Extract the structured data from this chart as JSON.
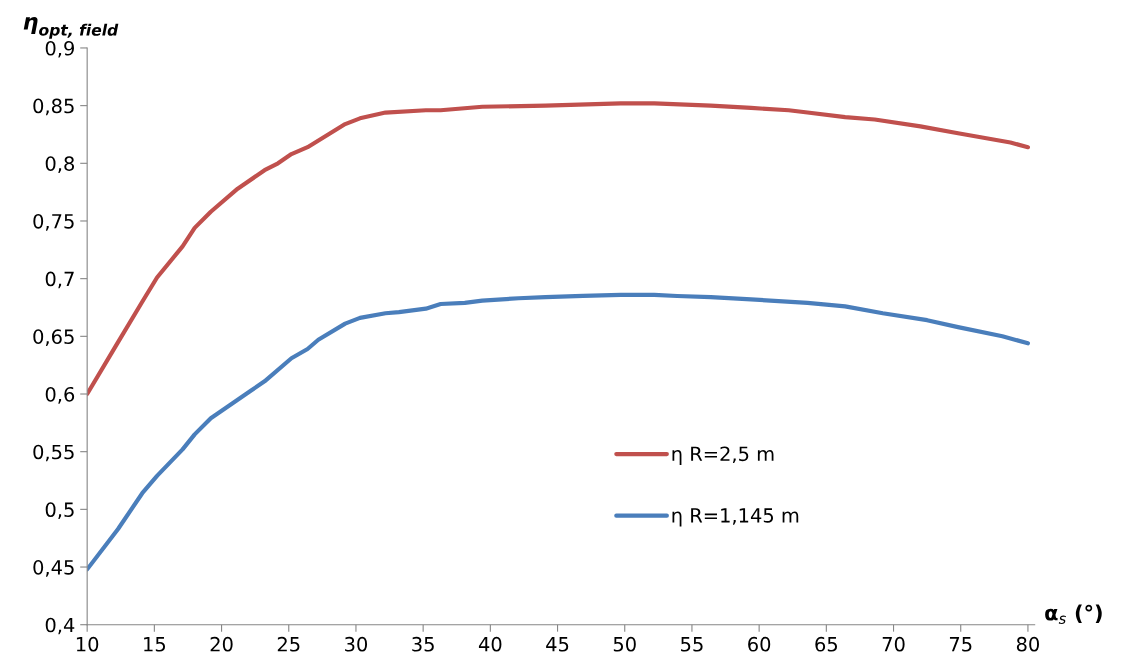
{
  "chart_data": {
    "type": "line",
    "ylabel": "η$_{opt, field}$",
    "xlabel": "α$_{s}$ (°)",
    "xlim": [
      10,
      80.5
    ],
    "xticks": [
      10,
      15,
      20,
      25,
      30,
      35,
      40,
      45,
      50,
      55,
      60,
      65,
      70,
      75,
      80
    ],
    "ylim": [
      0.4,
      0.9
    ],
    "yticks": [
      {
        "value": 0.4,
        "label": "0,4"
      },
      {
        "value": 0.45,
        "label": "0,45"
      },
      {
        "value": 0.5,
        "label": "0,5"
      },
      {
        "value": 0.55,
        "label": "0,55"
      },
      {
        "value": 0.6,
        "label": "0,6"
      },
      {
        "value": 0.65,
        "label": "0,65"
      },
      {
        "value": 0.7,
        "label": "0,7"
      },
      {
        "value": 0.75,
        "label": "0,75"
      },
      {
        "value": 0.8,
        "label": "0,8"
      },
      {
        "value": 0.85,
        "label": "0,85"
      },
      {
        "value": 0.9,
        "label": "0,9"
      }
    ],
    "grid": false,
    "legend": "bottom",
    "marker": "none",
    "line_style": "solid",
    "series": [
      {
        "name": "η R=2,5 m",
        "color": "#c0504d",
        "x": [
          10,
          12.2,
          14.1,
          15.2,
          17.1,
          18.0,
          19.2,
          21.2,
          23.2,
          24.2,
          25.2,
          26.4,
          29.2,
          30.3,
          32.2,
          35.2,
          36.3,
          39.4,
          44.1,
          49.7,
          52.2,
          56.4,
          59.4,
          62.2,
          63.6,
          66.4,
          68.6,
          72.0,
          74.8,
          78.7,
          80
        ],
        "values": [
          0.6,
          0.643,
          0.68,
          0.701,
          0.728,
          0.744,
          0.758,
          0.778,
          0.794,
          0.8,
          0.808,
          0.814,
          0.834,
          0.839,
          0.844,
          0.846,
          0.846,
          0.849,
          0.85,
          0.852,
          0.852,
          0.85,
          0.848,
          0.846,
          0.844,
          0.84,
          0.838,
          0.832,
          0.826,
          0.818,
          0.814
        ]
      },
      {
        "name": "η R=1,145 m",
        "color": "#4a7ebb",
        "x": [
          10,
          12.3,
          14.1,
          15.2,
          17.1,
          18.0,
          19.2,
          21.2,
          22.2,
          23.2,
          25.2,
          26.4,
          27.2,
          29.2,
          30.3,
          32.2,
          33.2,
          35.2,
          36.3,
          38.1,
          39.4,
          42.1,
          44.1,
          46.9,
          49.7,
          52.2,
          53.9,
          56.4,
          59.4,
          63.6,
          66.4,
          69.2,
          72.5,
          74.8,
          78.1,
          80
        ],
        "values": [
          0.448,
          0.483,
          0.514,
          0.529,
          0.552,
          0.565,
          0.579,
          0.595,
          0.603,
          0.611,
          0.631,
          0.639,
          0.647,
          0.661,
          0.666,
          0.67,
          0.671,
          0.674,
          0.678,
          0.679,
          0.681,
          0.683,
          0.684,
          0.685,
          0.686,
          0.686,
          0.685,
          0.684,
          0.682,
          0.679,
          0.676,
          0.67,
          0.664,
          0.658,
          0.65,
          0.644
        ]
      }
    ]
  }
}
